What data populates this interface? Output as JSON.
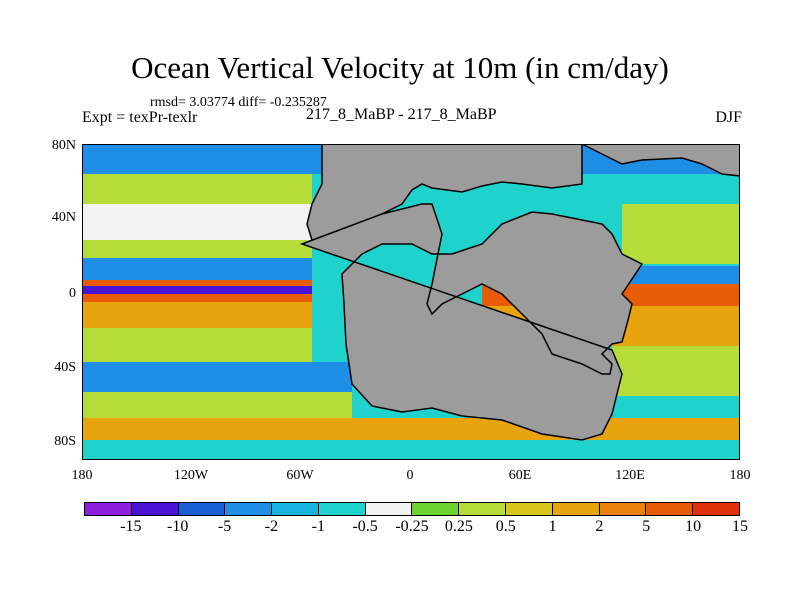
{
  "title": "Ocean Vertical Velocity at 10m (in cm/day)",
  "stats": "rmsd= 3.03774 diff= -0.235287",
  "expt": "Expt = texPr-texlr",
  "runs": "217_8_MaBP - 217_8_MaBP",
  "season": "DJF",
  "lat_labels": [
    "80N",
    "40N",
    "0",
    "40S",
    "80S"
  ],
  "lon_labels": [
    "180",
    "120W",
    "60W",
    "0",
    "60E",
    "120E",
    "180"
  ],
  "colorbar": {
    "colors": [
      "#8f1fdc",
      "#4a14d4",
      "#1b5fd6",
      "#1f8ee6",
      "#17b4e0",
      "#1fd3cc",
      "#f2f2f2",
      "#6ed22e",
      "#b6dc3a",
      "#d8c81e",
      "#e8a40e",
      "#e8820c",
      "#e85c08",
      "#e0300a"
    ],
    "labels": [
      "-15",
      "-10",
      "-5",
      "-2",
      "-1",
      "-0.5",
      "-0.25",
      "0.25",
      "0.5",
      "1",
      "2",
      "5",
      "10",
      "15"
    ]
  },
  "land_color": "#9c9c9c",
  "ocean_base_color": "#1fd3cc"
}
